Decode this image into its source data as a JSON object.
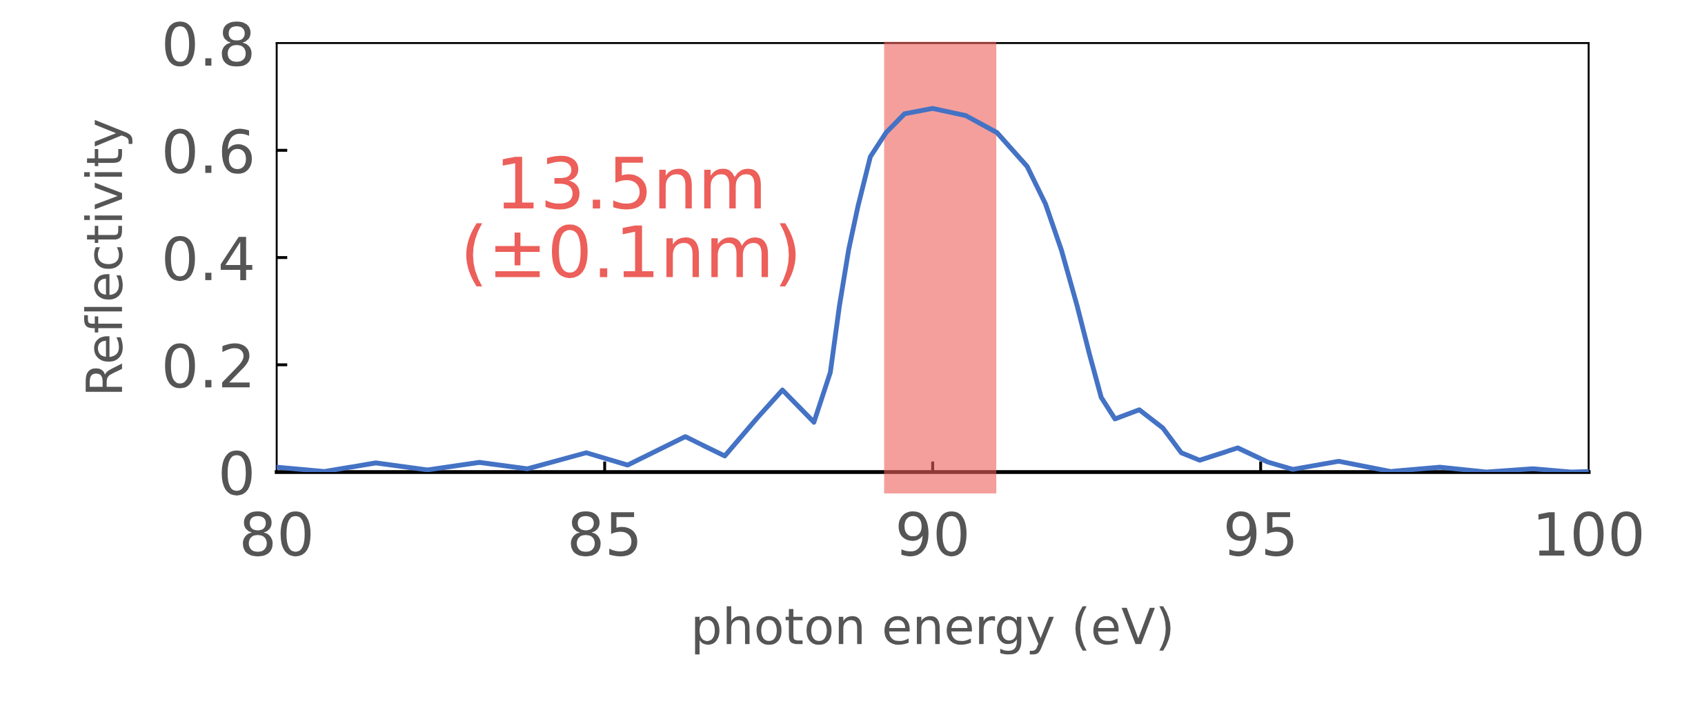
{
  "chart_data": {
    "type": "line",
    "xlabel": "photon energy (eV)",
    "ylabel": "Reflectivity",
    "x": [
      80.0,
      80.73,
      81.51,
      82.3,
      83.09,
      83.82,
      84.72,
      85.35,
      86.23,
      86.83,
      87.32,
      87.71,
      88.19,
      88.44,
      88.58,
      88.72,
      88.86,
      89.05,
      89.29,
      89.57,
      90.0,
      90.5,
      90.98,
      91.44,
      91.72,
      91.96,
      92.2,
      92.39,
      92.57,
      92.78,
      93.15,
      93.51,
      93.79,
      94.07,
      94.65,
      95.1,
      95.49,
      96.19,
      96.98,
      97.73,
      98.44,
      99.15,
      99.73,
      99.98
    ],
    "series": [
      {
        "color": "#4472c4",
        "values": [
          0.009,
          0.001,
          0.017,
          0.004,
          0.018,
          0.006,
          0.036,
          0.013,
          0.066,
          0.03,
          0.1,
          0.153,
          0.093,
          0.186,
          0.311,
          0.415,
          0.495,
          0.588,
          0.633,
          0.668,
          0.678,
          0.665,
          0.633,
          0.57,
          0.5,
          0.415,
          0.311,
          0.22,
          0.139,
          0.099,
          0.116,
          0.082,
          0.036,
          0.022,
          0.045,
          0.019,
          0.005,
          0.02,
          0.001,
          0.009,
          0.0,
          0.006,
          0.0,
          0.001
        ]
      }
    ],
    "xlim": [
      80,
      100
    ],
    "xticks": [
      80,
      85,
      90,
      95,
      100
    ],
    "ylim": [
      0,
      0.8
    ],
    "yticks": [
      0,
      0.2,
      0.4,
      0.6,
      0.8
    ],
    "bands": [
      {
        "axis": "x",
        "from": 89.26,
        "to": 90.97,
        "label": "13.5nm\n(±0.1nm)",
        "color": "#ec5f5a"
      }
    ],
    "grid": false,
    "legend": false,
    "marker": "none",
    "line_style": "solid"
  }
}
